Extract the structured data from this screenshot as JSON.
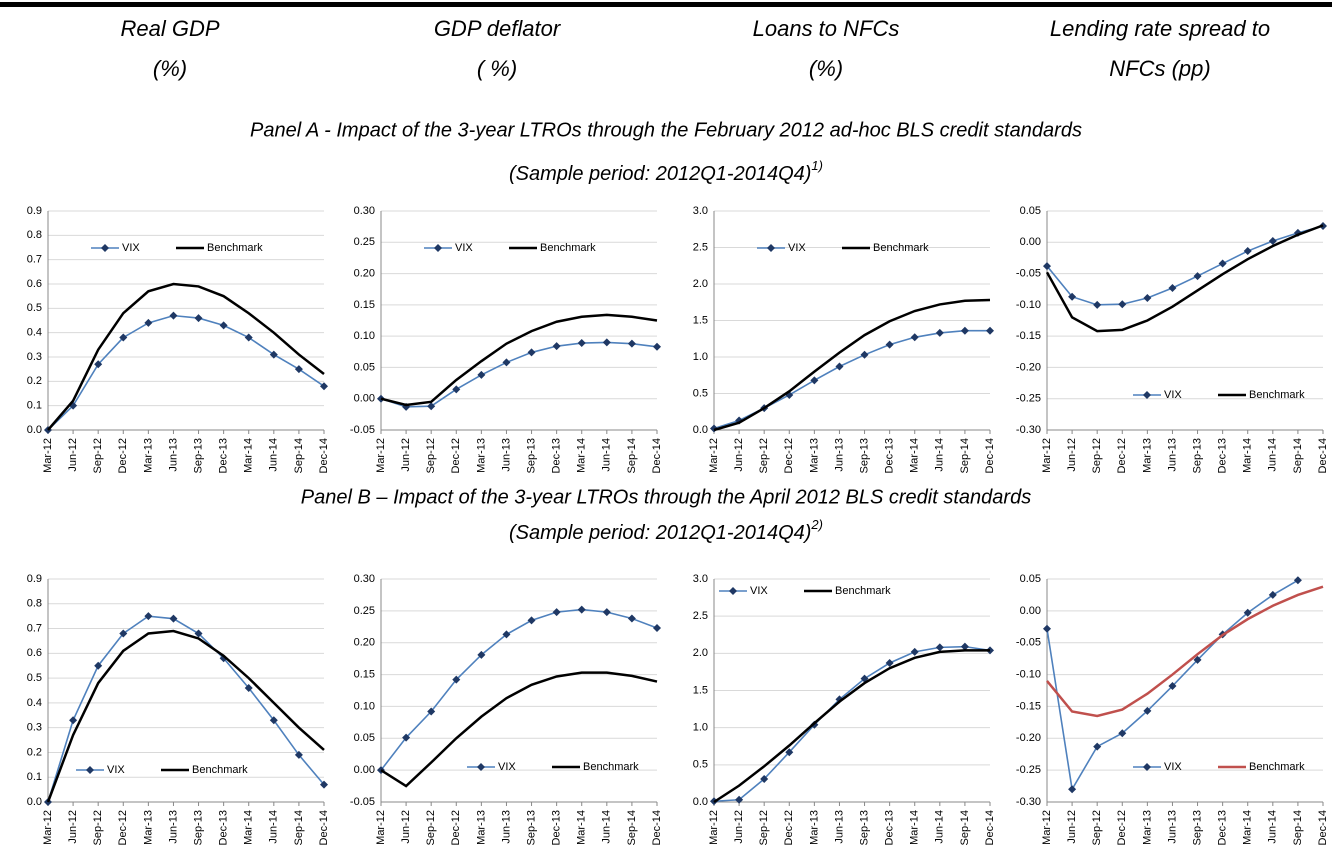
{
  "headers": [
    [
      "Real GDP",
      "(%)"
    ],
    [
      "GDP deflator",
      "( %)"
    ],
    [
      "Loans to NFCs",
      "(%)"
    ],
    [
      "Lending rate  spread to",
      "NFCs (pp)"
    ]
  ],
  "panels": [
    {
      "title": "Panel A - Impact of the 3-year LTROs through the February 2012 ad-hoc BLS credit standards",
      "subtitle": "(Sample period: 2012Q1-2014Q4)",
      "footnote": "1)"
    },
    {
      "title": "Panel B – Impact of the 3-year LTROs through the April 2012 BLS credit standards",
      "subtitle": "(Sample period: 2012Q1-2014Q4)",
      "footnote": "2)"
    }
  ],
  "chart_data": [
    {
      "type": "line",
      "categories": [
        "Mar-12",
        "Jun-12",
        "Sep-12",
        "Dec-12",
        "Mar-13",
        "Jun-13",
        "Sep-13",
        "Dec-13",
        "Mar-14",
        "Jun-14",
        "Sep-14",
        "Dec-14"
      ],
      "series": [
        {
          "name": "VIX",
          "color": "#4F81BD",
          "values": [
            0,
            0.1,
            0.27,
            0.38,
            0.44,
            0.47,
            0.46,
            0.43,
            0.38,
            0.31,
            0.25,
            0.18
          ]
        },
        {
          "name": "Benchmark",
          "color": "#000000",
          "values": [
            0,
            0.12,
            0.33,
            0.48,
            0.57,
            0.6,
            0.59,
            0.55,
            0.48,
            0.4,
            0.31,
            0.23
          ]
        }
      ],
      "ylim": [
        0,
        0.9
      ],
      "yticks": [
        {
          "value": 0,
          "label": "0.0"
        },
        0.1,
        0.2,
        0.3,
        0.4,
        0.5,
        0.6,
        0.7,
        0.8,
        0.9
      ],
      "grid": true,
      "legend": "upper-center"
    },
    {
      "type": "line",
      "categories": [
        "Mar-12",
        "Jun-12",
        "Sep-12",
        "Dec-12",
        "Mar-13",
        "Jun-13",
        "Sep-13",
        "Dec-13",
        "Mar-14",
        "Jun-14",
        "Sep-14",
        "Dec-14"
      ],
      "series": [
        {
          "name": "VIX",
          "color": "#4F81BD",
          "values": [
            0,
            -0.013,
            -0.012,
            0.015,
            0.038,
            0.058,
            0.074,
            0.084,
            0.089,
            0.09,
            0.088,
            0.083
          ]
        },
        {
          "name": "Benchmark",
          "color": "#000000",
          "values": [
            0,
            -0.01,
            -0.005,
            0.03,
            0.06,
            0.088,
            0.108,
            0.123,
            0.131,
            0.134,
            0.131,
            0.125
          ]
        }
      ],
      "ylim": [
        -0.05,
        0.3
      ],
      "yticks": [
        -0.05,
        {
          "value": 0,
          "label": "0.00"
        },
        0.05,
        {
          "value": 0.1,
          "label": "0.10"
        },
        0.15,
        {
          "value": 0.2,
          "label": "0.20"
        },
        0.25,
        {
          "value": 0.3,
          "label": "0.30"
        }
      ],
      "grid": true,
      "legend": "upper-center"
    },
    {
      "type": "line",
      "categories": [
        "Mar-12",
        "Jun-12",
        "Sep-12",
        "Dec-12",
        "Mar-13",
        "Jun-13",
        "Sep-13",
        "Dec-13",
        "Mar-14",
        "Jun-14",
        "Sep-14",
        "Dec-14"
      ],
      "series": [
        {
          "name": "VIX",
          "color": "#4F81BD",
          "values": [
            0.02,
            0.13,
            0.3,
            0.48,
            0.68,
            0.87,
            1.03,
            1.17,
            1.27,
            1.33,
            1.36,
            1.36
          ]
        },
        {
          "name": "Benchmark",
          "color": "#000000",
          "values": [
            0,
            0.1,
            0.3,
            0.53,
            0.8,
            1.06,
            1.3,
            1.49,
            1.63,
            1.72,
            1.77,
            1.78
          ]
        }
      ],
      "ylim": [
        0,
        3
      ],
      "yticks": [
        {
          "value": 0,
          "label": "0.0"
        },
        0.5,
        {
          "value": 1,
          "label": "1.0"
        },
        1.5,
        {
          "value": 2,
          "label": "2.0"
        },
        2.5,
        {
          "value": 3,
          "label": "3.0"
        }
      ],
      "grid": true,
      "legend": "upper-center"
    },
    {
      "type": "line",
      "categories": [
        "Mar-12",
        "Jun-12",
        "Sep-12",
        "Dec-12",
        "Mar-13",
        "Jun-13",
        "Sep-13",
        "Dec-13",
        "Mar-14",
        "Jun-14",
        "Sep-14",
        "Dec-14"
      ],
      "series": [
        {
          "name": "VIX",
          "color": "#4F81BD",
          "values": [
            -0.038,
            -0.087,
            -0.1,
            -0.099,
            -0.089,
            -0.073,
            -0.054,
            -0.034,
            -0.014,
            0.002,
            0.015,
            0.026
          ]
        },
        {
          "name": "Benchmark",
          "color": "#000000",
          "values": [
            -0.048,
            -0.12,
            -0.142,
            -0.14,
            -0.125,
            -0.103,
            -0.077,
            -0.051,
            -0.027,
            -0.006,
            0.012,
            0.027
          ]
        }
      ],
      "ylim": [
        -0.3,
        0.05
      ],
      "yticks": [
        {
          "value": -0.3,
          "label": "-0.30"
        },
        -0.25,
        {
          "value": -0.2,
          "label": "-0.20"
        },
        -0.15,
        {
          "value": -0.1,
          "label": "-0.10"
        },
        -0.05,
        {
          "value": 0,
          "label": "0.00"
        },
        0.05
      ],
      "grid": true,
      "legend": "lower-right"
    },
    {
      "type": "line",
      "categories": [
        "Mar-12",
        "Jun-12",
        "Sep-12",
        "Dec-12",
        "Mar-13",
        "Jun-13",
        "Sep-13",
        "Dec-13",
        "Mar-14",
        "Jun-14",
        "Sep-14",
        "Dec-14"
      ],
      "series": [
        {
          "name": "VIX",
          "color": "#4F81BD",
          "values": [
            0,
            0.33,
            0.55,
            0.68,
            0.75,
            0.74,
            0.68,
            0.58,
            0.46,
            0.33,
            0.19,
            0.07
          ]
        },
        {
          "name": "Benchmark",
          "color": "#000000",
          "values": [
            0,
            0.27,
            0.48,
            0.61,
            0.68,
            0.69,
            0.66,
            0.59,
            0.5,
            0.4,
            0.3,
            0.21
          ]
        }
      ],
      "ylim": [
        0,
        0.9
      ],
      "yticks": [
        {
          "value": 0,
          "label": "0.0"
        },
        0.1,
        0.2,
        0.3,
        0.4,
        0.5,
        0.6,
        0.7,
        0.8,
        0.9
      ],
      "grid": true,
      "legend": "lower-center"
    },
    {
      "type": "line",
      "categories": [
        "Mar-12",
        "Jun-12",
        "Sep-12",
        "Dec-12",
        "Mar-13",
        "Jun-13",
        "Sep-13",
        "Dec-13",
        "Mar-14",
        "Jun-14",
        "Sep-14",
        "Dec-14"
      ],
      "series": [
        {
          "name": "VIX",
          "color": "#4F81BD",
          "values": [
            0,
            0.051,
            0.092,
            0.142,
            0.181,
            0.213,
            0.235,
            0.248,
            0.252,
            0.248,
            0.238,
            0.223
          ]
        },
        {
          "name": "Benchmark",
          "color": "#000000",
          "values": [
            0,
            -0.025,
            0.012,
            0.05,
            0.084,
            0.113,
            0.134,
            0.147,
            0.153,
            0.153,
            0.148,
            0.139
          ]
        }
      ],
      "ylim": [
        -0.05,
        0.3
      ],
      "yticks": [
        -0.05,
        {
          "value": 0,
          "label": "0.00"
        },
        0.05,
        {
          "value": 0.1,
          "label": "0.10"
        },
        0.15,
        {
          "value": 0.2,
          "label": "0.20"
        },
        0.25,
        {
          "value": 0.3,
          "label": "0.30"
        }
      ],
      "grid": true,
      "legend": "lower-right"
    },
    {
      "type": "line",
      "categories": [
        "Mar-12",
        "Jun-12",
        "Sep-12",
        "Dec-12",
        "Mar-13",
        "Jun-13",
        "Sep-13",
        "Dec-13",
        "Mar-14",
        "Jun-14",
        "Sep-14",
        "Dec-14"
      ],
      "series": [
        {
          "name": "VIX",
          "color": "#4F81BD",
          "values": [
            0.01,
            0.03,
            0.31,
            0.67,
            1.04,
            1.38,
            1.66,
            1.87,
            2.02,
            2.08,
            2.09,
            2.04
          ]
        },
        {
          "name": "Benchmark",
          "color": "#000000",
          "values": [
            0,
            0.22,
            0.48,
            0.76,
            1.06,
            1.35,
            1.6,
            1.8,
            1.94,
            2.02,
            2.04,
            2.04
          ]
        }
      ],
      "ylim": [
        0,
        3
      ],
      "yticks": [
        {
          "value": 0,
          "label": "0.0"
        },
        0.5,
        {
          "value": 1,
          "label": "1.0"
        },
        1.5,
        {
          "value": 2,
          "label": "2.0"
        },
        2.5,
        {
          "value": 3,
          "label": "3.0"
        }
      ],
      "grid": true,
      "legend": "upper-left"
    },
    {
      "type": "line",
      "categories": [
        "Mar-12",
        "Jun-12",
        "Sep-12",
        "Dec-12",
        "Mar-13",
        "Jun-13",
        "Sep-13",
        "Dec-13",
        "Mar-14",
        "Jun-14",
        "Sep-14",
        "Dec-14"
      ],
      "series": [
        {
          "name": "VIX",
          "color": "#4F81BD",
          "values": [
            -0.028,
            -0.28,
            -0.213,
            -0.192,
            -0.157,
            -0.118,
            -0.077,
            -0.037,
            -0.003,
            0.025,
            0.048,
            null
          ]
        },
        {
          "name": "Benchmark",
          "color": "#C0504D",
          "values": [
            -0.11,
            -0.158,
            -0.165,
            -0.155,
            -0.13,
            -0.1,
            -0.068,
            -0.038,
            -0.013,
            0.008,
            0.025,
            0.038
          ]
        }
      ],
      "ylim": [
        -0.3,
        0.05
      ],
      "yticks": [
        {
          "value": -0.3,
          "label": "-0.30"
        },
        -0.25,
        {
          "value": -0.2,
          "label": "-0.20"
        },
        -0.15,
        {
          "value": -0.1,
          "label": "-0.10"
        },
        -0.05,
        {
          "value": 0,
          "label": "0.00"
        },
        0.05
      ],
      "grid": true,
      "legend": "lower-right"
    }
  ]
}
